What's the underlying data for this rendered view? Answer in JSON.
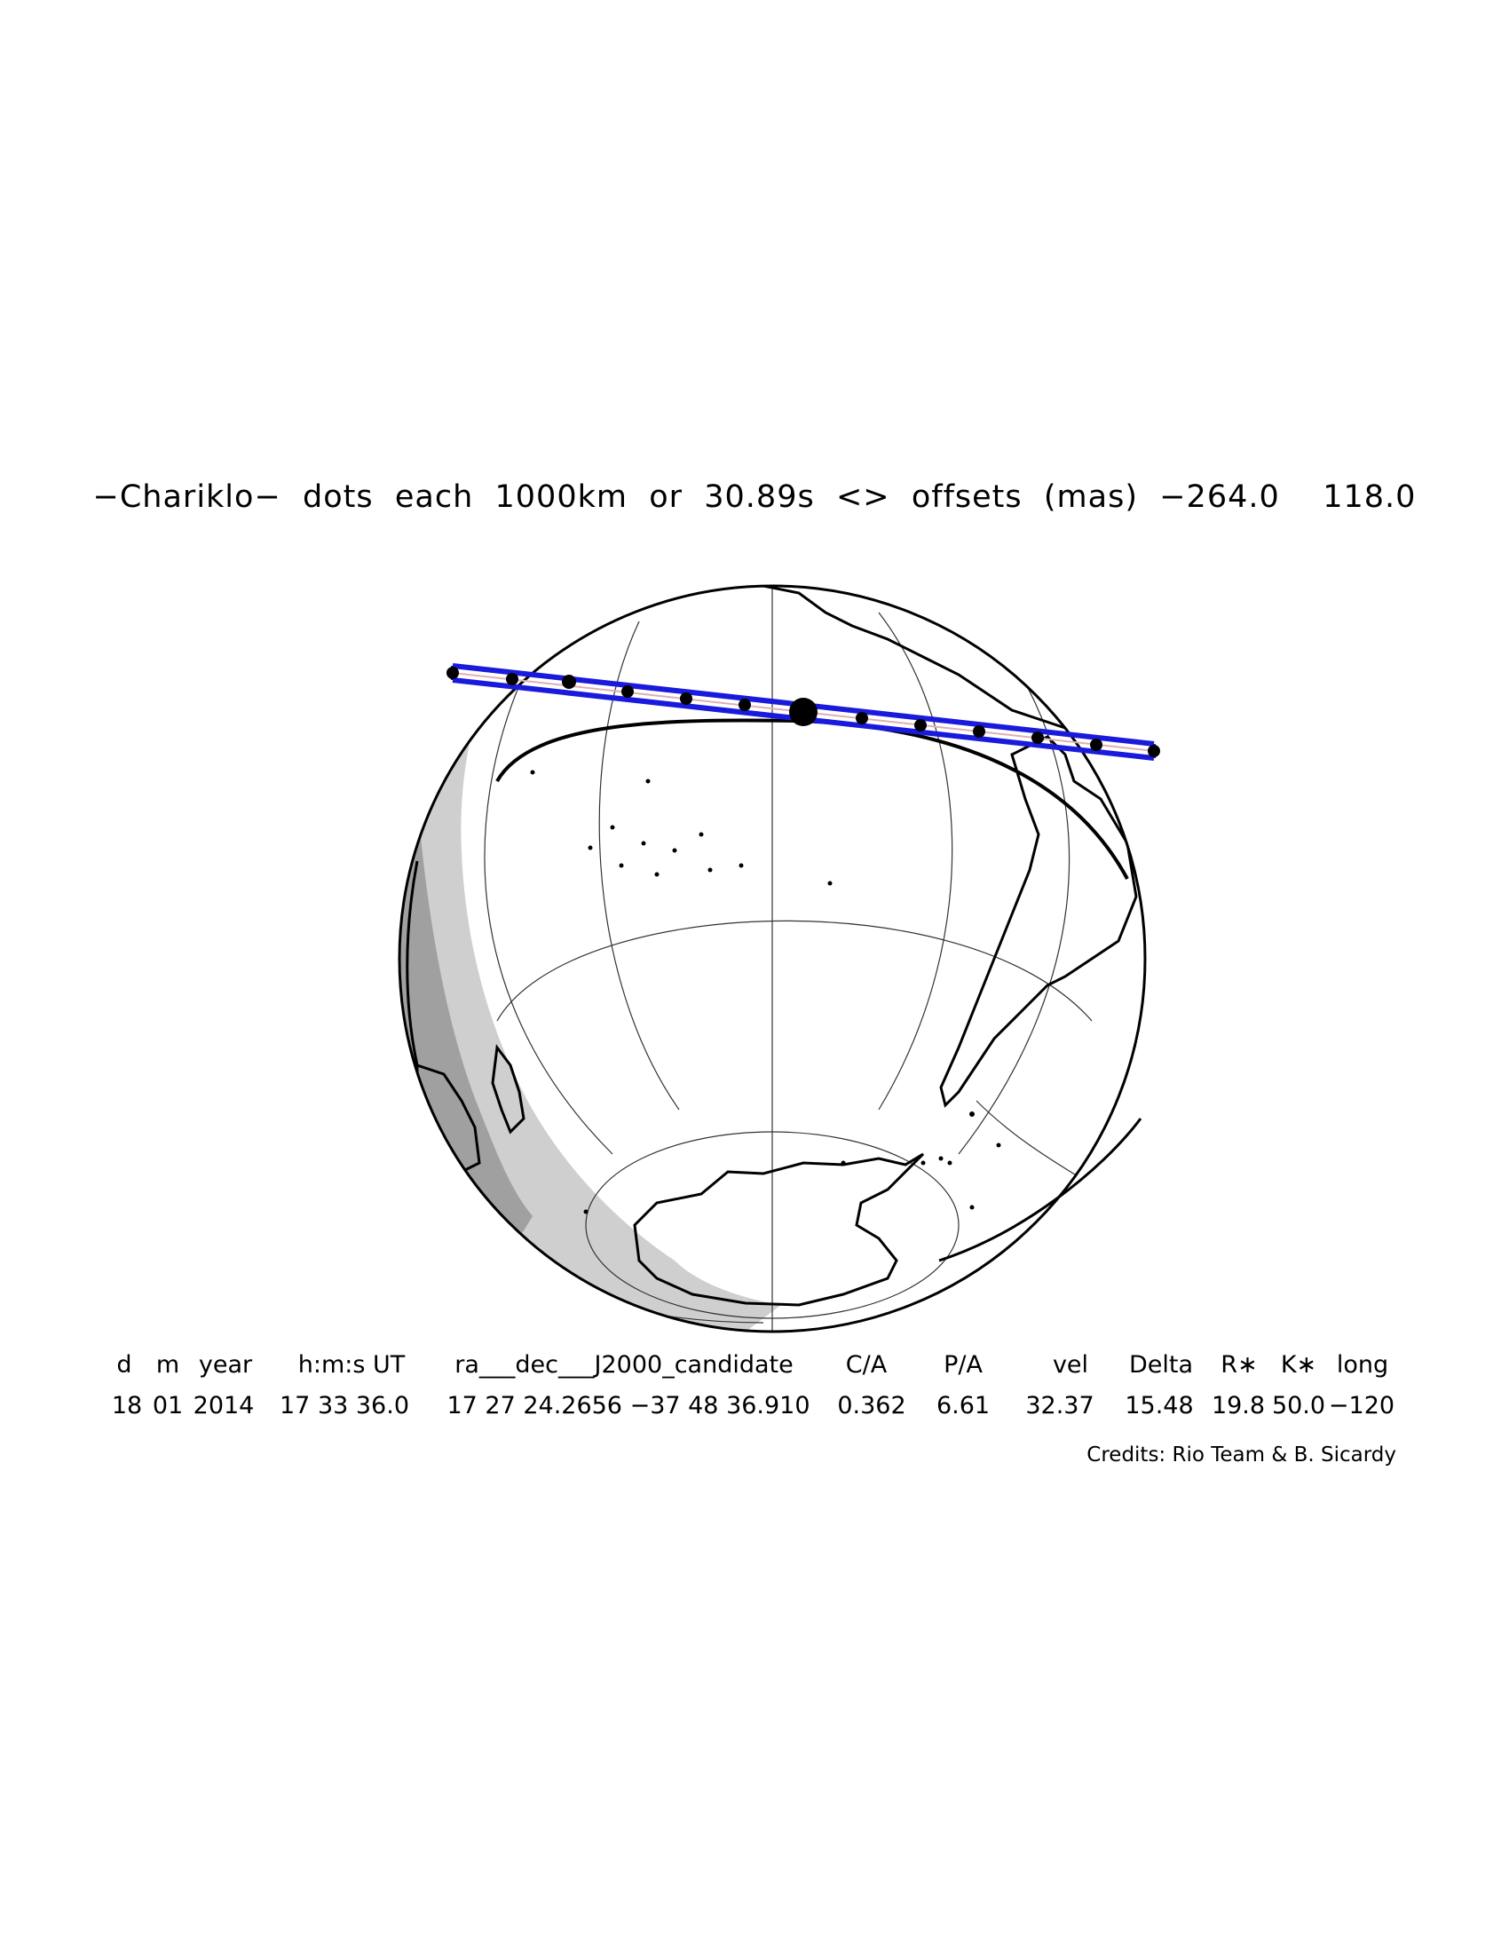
{
  "title": "−Chariklo−  dots  each  1000km  or  30.89s  <>  offsets  (mas)  −264.0    118.0",
  "table": {
    "headers": [
      "d",
      "m",
      "year",
      "h:m:s UT",
      "ra___dec___J2000_candidate",
      "C/A",
      "P/A",
      "vel",
      "Delta",
      "R∗",
      "K∗",
      "long"
    ],
    "values": [
      "18",
      "01",
      "2014",
      "17 33 36.0",
      "17 27 24.2656 −37 48 36.910",
      "0.362",
      "6.61",
      "32.37",
      "15.48",
      "19.8",
      "50.0",
      "−120"
    ]
  },
  "credits": "Credits: Rio Team & B. Sicardy",
  "colors": {
    "track": "#1a1adc",
    "centerline": "#e0b0b0",
    "night": "#c8c8c8",
    "twilight": "#9a9a9a"
  }
}
